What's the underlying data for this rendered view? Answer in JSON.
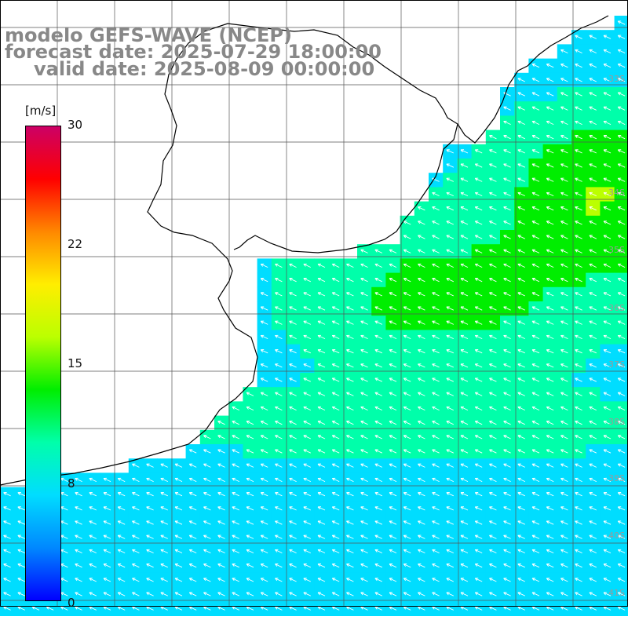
{
  "header": {
    "model": "modelo GEFS-WAVE (NCEP)",
    "forecast": "forecast date: 2025-07-29 18:00:00",
    "valid": "valid date: 2025-08-09 00:00:00"
  },
  "colorbar": {
    "unit": "[m/s]",
    "ticks": [
      "30",
      "22",
      "15",
      "8",
      "0"
    ],
    "colors": [
      "#0000ff",
      "#0088ff",
      "#00ddff",
      "#00ffaa",
      "#00ee00",
      "#bbff00",
      "#ffee00",
      "#ff8800",
      "#ff0000",
      "#cc0066"
    ]
  },
  "lat_labels": [
    "33S",
    "34S",
    "35S",
    "36S",
    "37S",
    "38S",
    "39S",
    "40S",
    "41S"
  ],
  "wind_field": {
    "variable": "wind speed",
    "unit": "m/s",
    "range": [
      0,
      30
    ],
    "direction": "flow toward the northwest/west-northwest (southeasterly winds)",
    "max_region": "around 15 m/s in the northeast offshore area",
    "min_region": "around 5 m/s in the southwest near the coast"
  },
  "colors": {
    "land": "#ffffff",
    "grid": "#555555",
    "coast": "#000000",
    "title_text": "#888888"
  }
}
